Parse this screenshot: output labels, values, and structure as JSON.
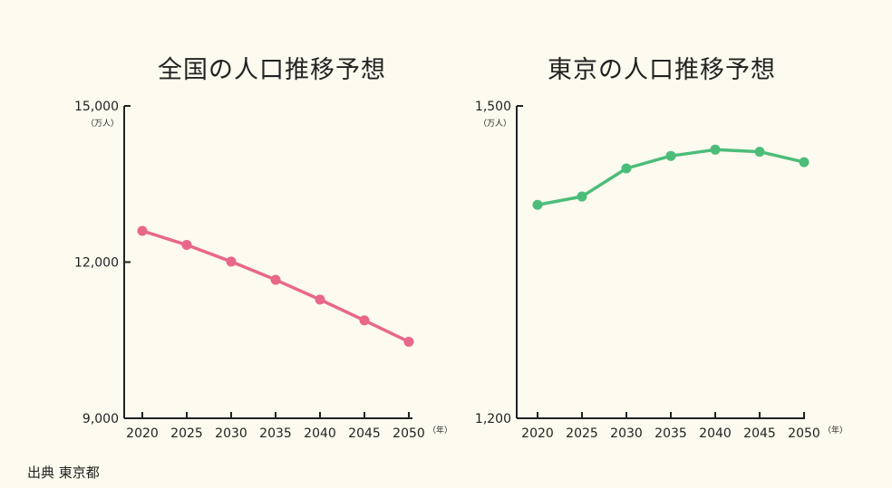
{
  "chart_data": [
    {
      "type": "line",
      "title": "全国の人口推移予想",
      "categories": [
        "2020",
        "2025",
        "2030",
        "2035",
        "2040",
        "2045",
        "2050"
      ],
      "series": [
        {
          "values": [
            12600,
            12330,
            12010,
            11660,
            11280,
            10880,
            10470
          ]
        }
      ],
      "ylim": [
        9000,
        15000
      ],
      "yticks": [
        "15,000",
        "12,000",
        "9,000"
      ],
      "ytick_values": [
        15000,
        12000,
        9000
      ],
      "y_unit": "（万人）",
      "x_unit": "（年）",
      "color": "#e8678a"
    },
    {
      "type": "line",
      "title": "東京の人口推移予想",
      "categories": [
        "2020",
        "2025",
        "2030",
        "2035",
        "2040",
        "2045",
        "2050"
      ],
      "series": [
        {
          "values": [
            1405,
            1413,
            1440,
            1452,
            1458,
            1456,
            1446
          ]
        }
      ],
      "ylim": [
        1200,
        1500
      ],
      "yticks": [
        "1,500",
        "1,200"
      ],
      "ytick_values": [
        1500,
        1200
      ],
      "y_unit": "（万人）",
      "x_unit": "（年）",
      "color": "#4cbd79"
    }
  ],
  "source": "出典 東京都"
}
